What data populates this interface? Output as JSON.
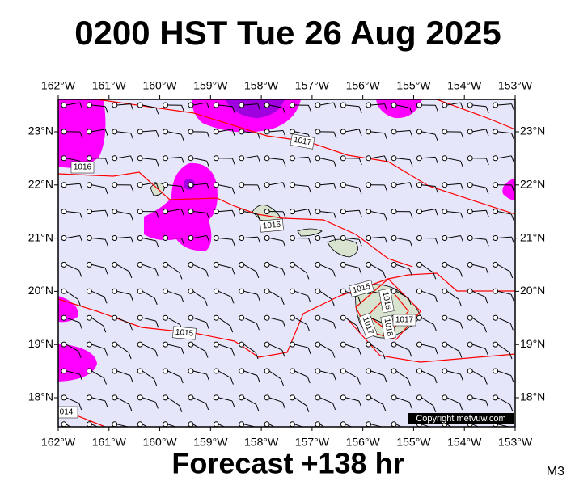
{
  "header": {
    "title": "0200 HST Tue 26 Aug 2025"
  },
  "map": {
    "lon_labels": [
      "162°W",
      "161°W",
      "160°W",
      "159°W",
      "158°W",
      "157°W",
      "156°W",
      "155°W",
      "154°W",
      "153°W"
    ],
    "lat_labels": [
      "23°N",
      "22°N",
      "21°N",
      "20°N",
      "19°N",
      "18°N"
    ],
    "isobar_labels": [
      "1016",
      "1017",
      "1016",
      "1015",
      "014",
      "1015",
      "1016",
      "1017",
      "1018",
      "1017"
    ],
    "copyright": "Copyright metvuw.com"
  },
  "footer": {
    "forecast": "Forecast +138 hr",
    "model": "M3"
  }
}
